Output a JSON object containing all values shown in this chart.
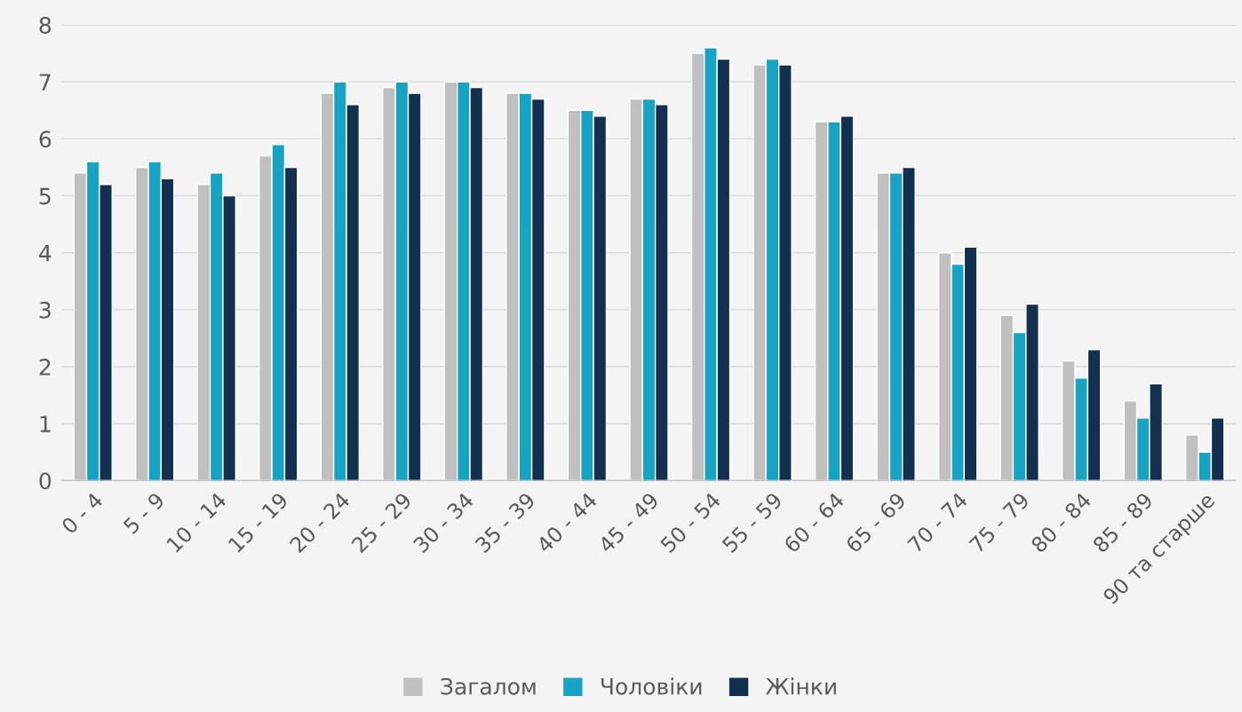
{
  "chart_data": {
    "type": "bar",
    "categories": [
      "0 - 4",
      "5 - 9",
      "10 - 14",
      "15 - 19",
      "20 - 24",
      "25 - 29",
      "30 - 34",
      "35 - 39",
      "40 - 44",
      "45 - 49",
      "50 - 54",
      "55 - 59",
      "60 - 64",
      "65 - 69",
      "70 - 74",
      "75 - 79",
      "80 - 84",
      "85 - 89",
      "90 та старше"
    ],
    "series": [
      {
        "name": "Загалом",
        "color": "#c0c0c0",
        "values": [
          5.4,
          5.5,
          5.2,
          5.7,
          6.8,
          6.9,
          7.0,
          6.8,
          6.5,
          6.7,
          7.5,
          7.3,
          6.3,
          5.4,
          4.0,
          2.9,
          2.1,
          1.4,
          0.8
        ]
      },
      {
        "name": "Чоловіки",
        "color": "#18a3c2",
        "values": [
          5.6,
          5.6,
          5.4,
          5.9,
          7.0,
          7.0,
          7.0,
          6.8,
          6.5,
          6.7,
          7.6,
          7.4,
          6.3,
          5.4,
          3.8,
          2.6,
          1.8,
          1.1,
          0.5
        ]
      },
      {
        "name": "Жінки",
        "color": "#14304f",
        "values": [
          5.2,
          5.3,
          5.0,
          5.5,
          6.6,
          6.8,
          6.9,
          6.7,
          6.4,
          6.6,
          7.4,
          7.3,
          6.4,
          5.5,
          4.1,
          3.1,
          2.3,
          1.7,
          1.1
        ]
      }
    ],
    "ylim": [
      0,
      8
    ],
    "yticks": [
      0,
      1,
      2,
      3,
      4,
      5,
      6,
      7,
      8
    ],
    "grid": "y",
    "legend": "bottom"
  }
}
